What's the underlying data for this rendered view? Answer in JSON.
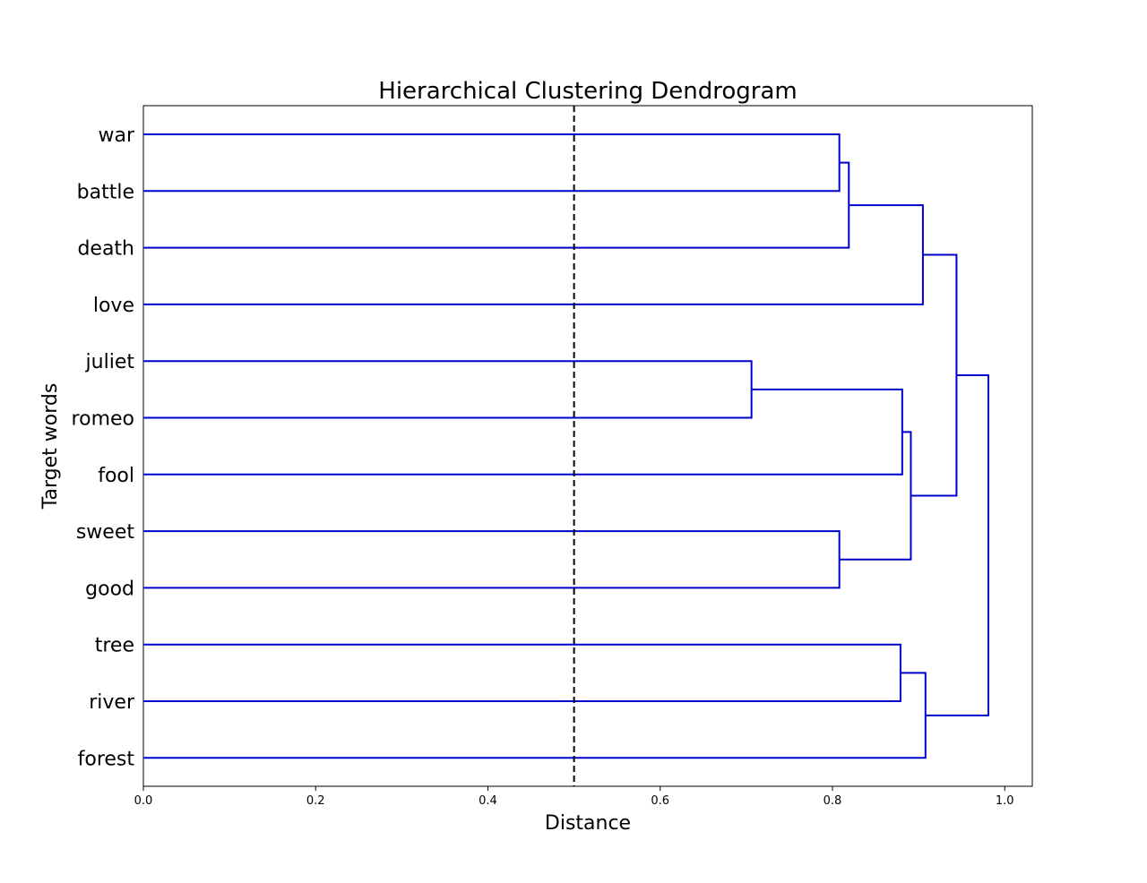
{
  "chart_data": {
    "type": "dendrogram",
    "orientation": "horizontal",
    "title": "Hierarchical Clustering Dendrogram",
    "xlabel": "Distance",
    "ylabel": "Target words",
    "xlim": [
      0,
      1.032
    ],
    "xticks": [
      {
        "value": 0.0,
        "label": "0.0"
      },
      {
        "value": 0.2,
        "label": "0.2"
      },
      {
        "value": 0.4,
        "label": "0.4"
      },
      {
        "value": 0.6,
        "label": "0.6"
      },
      {
        "value": 0.8,
        "label": "0.8"
      },
      {
        "value": 1.0,
        "label": "1.0"
      }
    ],
    "threshold": 0.5,
    "link_color": "#0000cc",
    "threshold_color": "#000000",
    "leaves": [
      "war",
      "battle",
      "death",
      "love",
      "juliet",
      "romeo",
      "fool",
      "sweet",
      "good",
      "tree",
      "river",
      "forest"
    ],
    "merges": [
      {
        "a": "L:war",
        "b": "L:battle",
        "distance": 0.808
      },
      {
        "a": "L:juliet",
        "b": "L:romeo",
        "distance": 0.706
      },
      {
        "a": "L:sweet",
        "b": "L:good",
        "distance": 0.808
      },
      {
        "a": "L:tree",
        "b": "L:river",
        "distance": 0.879
      },
      {
        "a": "C:0",
        "b": "L:death",
        "distance": 0.819
      },
      {
        "a": "C:1",
        "b": "L:fool",
        "distance": 0.881
      },
      {
        "a": "C:5",
        "b": "C:2",
        "distance": 0.891
      },
      {
        "a": "C:3",
        "b": "L:forest",
        "distance": 0.908
      },
      {
        "a": "C:4",
        "b": "L:love",
        "distance": 0.905
      },
      {
        "a": "C:8",
        "b": "C:6",
        "distance": 0.944
      },
      {
        "a": "C:9",
        "b": "C:7",
        "distance": 0.981
      }
    ]
  }
}
